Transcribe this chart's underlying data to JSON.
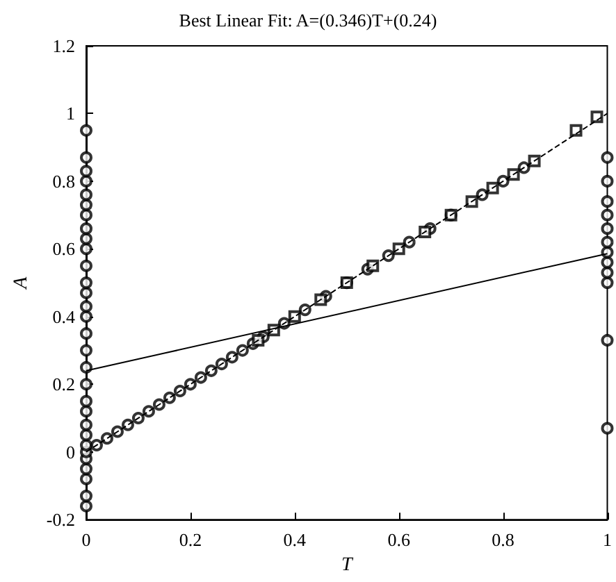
{
  "chart_data": {
    "type": "scatter",
    "title": "Best Linear Fit: A=(0.346)T+(0.24)",
    "xlabel": "T",
    "ylabel": "A",
    "xlim": [
      0,
      1
    ],
    "xticks": [
      0,
      0.2,
      0.4,
      0.6,
      0.8,
      1
    ],
    "ylim": [
      -0.2,
      1.2
    ],
    "yticks": [
      -0.2,
      0,
      0.2,
      0.4,
      0.6,
      0.8,
      1,
      1.2
    ],
    "series": [
      {
        "marker": "circle",
        "color": "#000000",
        "x": [
          0,
          0,
          0,
          0,
          0,
          0,
          0,
          0,
          0,
          0,
          0,
          0,
          0,
          0,
          0,
          0,
          0,
          0,
          0,
          0,
          0,
          0,
          0,
          0,
          0,
          0,
          0,
          0,
          0,
          0,
          1,
          1,
          1,
          1,
          1,
          1,
          1,
          1,
          1,
          1,
          1,
          1,
          0.02,
          0.04,
          0.06,
          0.08,
          0.1,
          0.12,
          0.14,
          0.16,
          0.18,
          0.2,
          0.22,
          0.24,
          0.26,
          0.28,
          0.3,
          0.32,
          0.34,
          0.38,
          0.42,
          0.46,
          0.5,
          0.54,
          0.58,
          0.62,
          0.66,
          0.7,
          0.76,
          0.8,
          0.84
        ],
        "values": [
          -0.16,
          -0.13,
          -0.08,
          -0.05,
          -0.02,
          0,
          0.02,
          0.05,
          0.08,
          0.12,
          0.15,
          0.2,
          0.25,
          0.3,
          0.35,
          0.4,
          0.43,
          0.47,
          0.5,
          0.55,
          0.6,
          0.63,
          0.66,
          0.7,
          0.73,
          0.76,
          0.8,
          0.83,
          0.87,
          0.95,
          0.07,
          0.33,
          0.5,
          0.53,
          0.56,
          0.59,
          0.62,
          0.66,
          0.7,
          0.74,
          0.8,
          0.87,
          0.02,
          0.04,
          0.06,
          0.08,
          0.1,
          0.12,
          0.14,
          0.16,
          0.18,
          0.2,
          0.22,
          0.24,
          0.26,
          0.28,
          0.3,
          0.32,
          0.34,
          0.38,
          0.42,
          0.46,
          0.5,
          0.54,
          0.58,
          0.62,
          0.66,
          0.7,
          0.76,
          0.8,
          0.84
        ]
      },
      {
        "marker": "square",
        "color": "#000000",
        "x": [
          0.33,
          0.36,
          0.4,
          0.45,
          0.5,
          0.55,
          0.6,
          0.65,
          0.7,
          0.74,
          0.78,
          0.82,
          0.86,
          0.94,
          0.98
        ],
        "values": [
          0.33,
          0.36,
          0.4,
          0.45,
          0.5,
          0.55,
          0.6,
          0.65,
          0.7,
          0.74,
          0.78,
          0.82,
          0.86,
          0.95,
          0.99
        ]
      },
      {
        "type": "line",
        "line_style": "dashed",
        "marker": "none",
        "color": "#000000",
        "x": [
          0,
          1
        ],
        "values": [
          0,
          1
        ]
      },
      {
        "type": "line",
        "line_style": "solid",
        "marker": "none",
        "color": "#000000",
        "x": [
          0,
          1
        ],
        "values": [
          0.24,
          0.586
        ]
      }
    ]
  }
}
